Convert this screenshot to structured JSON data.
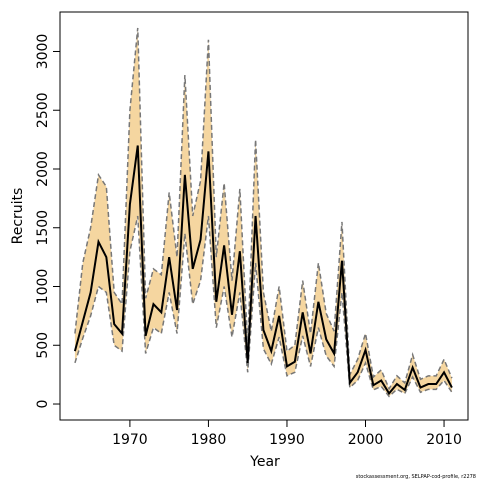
{
  "chart_data": {
    "type": "line",
    "x_label": "Year",
    "y_label": "Recruits",
    "footnote": "stockassessment.org, SELPAP-cod-profile, r2278",
    "x": [
      1963,
      1964,
      1965,
      1966,
      1967,
      1968,
      1969,
      1970,
      1971,
      1972,
      1973,
      1974,
      1975,
      1976,
      1977,
      1978,
      1979,
      1980,
      1981,
      1982,
      1983,
      1984,
      1985,
      1986,
      1987,
      1988,
      1989,
      1990,
      1991,
      1992,
      1993,
      1994,
      1995,
      1996,
      1997,
      1998,
      1999,
      2000,
      2001,
      2002,
      2003,
      2004,
      2005,
      2006,
      2007,
      2008,
      2009,
      2010,
      2011
    ],
    "values": [
      450,
      700,
      950,
      1380,
      1250,
      680,
      600,
      1700,
      2200,
      580,
      850,
      780,
      1250,
      800,
      1950,
      1150,
      1400,
      2150,
      870,
      1350,
      760,
      1300,
      350,
      1600,
      630,
      450,
      750,
      320,
      360,
      780,
      430,
      870,
      550,
      430,
      1220,
      180,
      270,
      460,
      160,
      200,
      90,
      170,
      120,
      310,
      140,
      170,
      170,
      270,
      140
    ],
    "upper": [
      600,
      1200,
      1500,
      1950,
      1850,
      950,
      850,
      2500,
      3200,
      900,
      1150,
      1100,
      1800,
      1250,
      2800,
      1600,
      1900,
      3100,
      1250,
      1880,
      1050,
      1830,
      500,
      2250,
      950,
      620,
      1000,
      450,
      500,
      1050,
      600,
      1200,
      770,
      620,
      1550,
      250,
      380,
      600,
      230,
      290,
      130,
      240,
      180,
      420,
      210,
      240,
      240,
      380,
      220
    ],
    "lower": [
      350,
      560,
      750,
      1000,
      950,
      500,
      450,
      1300,
      1600,
      430,
      650,
      600,
      950,
      600,
      1450,
      850,
      1050,
      1600,
      650,
      1000,
      570,
      950,
      270,
      1200,
      470,
      340,
      570,
      240,
      270,
      580,
      320,
      650,
      410,
      320,
      950,
      140,
      200,
      350,
      120,
      150,
      65,
      125,
      90,
      230,
      100,
      125,
      125,
      200,
      100
    ],
    "color": "#000000",
    "band_color": "#f5d6a0",
    "band_edge_color": "#777777",
    "xlim": [
      1961.1,
      2013.05
    ],
    "ylim": [
      -136,
      3336
    ],
    "xticks": [
      1970,
      1980,
      1990,
      2000,
      2010
    ],
    "yticks": [
      0,
      500,
      1000,
      1500,
      2000,
      2500,
      3000
    ]
  }
}
